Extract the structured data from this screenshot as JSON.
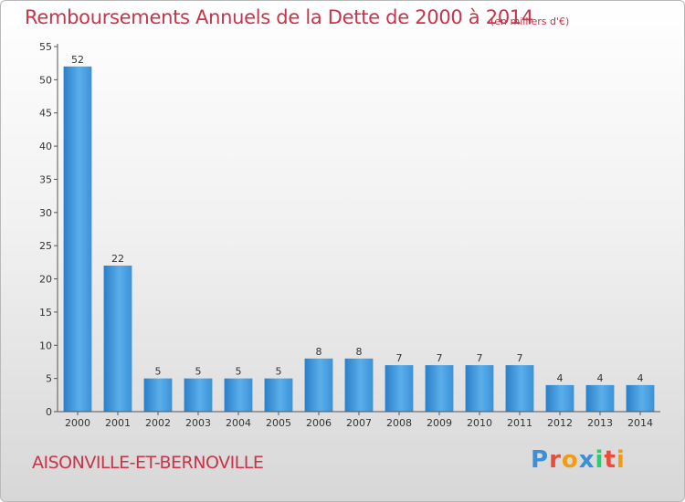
{
  "chart_data": {
    "type": "bar",
    "title": "Remboursements Annuels de la Dette de 2000 à 2014",
    "unit": "(en milliers d'€)",
    "categories": [
      "2000",
      "2001",
      "2002",
      "2003",
      "2004",
      "2005",
      "2006",
      "2007",
      "2008",
      "2009",
      "2010",
      "2011",
      "2012",
      "2013",
      "2014"
    ],
    "values": [
      52,
      22,
      5,
      5,
      5,
      5,
      8,
      8,
      7,
      7,
      7,
      7,
      4,
      4,
      4
    ],
    "yticks": [
      0,
      5,
      10,
      15,
      20,
      25,
      30,
      35,
      40,
      45,
      50,
      55
    ],
    "ylim": [
      0,
      55
    ],
    "grid": false,
    "xlabel": "",
    "ylabel": "",
    "bar_color": "#3a93d8"
  },
  "footer": {
    "commune": "AISONVILLE-ET-BERNOVILLE",
    "logo": [
      "P",
      "r",
      "o",
      "x",
      "i",
      "t",
      "i"
    ]
  },
  "colors": {
    "title": "#c8344a",
    "logo": [
      "#3a8fd6",
      "#e74c3c",
      "#f39c12",
      "#3a8fd6",
      "#2ecc71",
      "#e74c3c",
      "#f39c12"
    ]
  }
}
